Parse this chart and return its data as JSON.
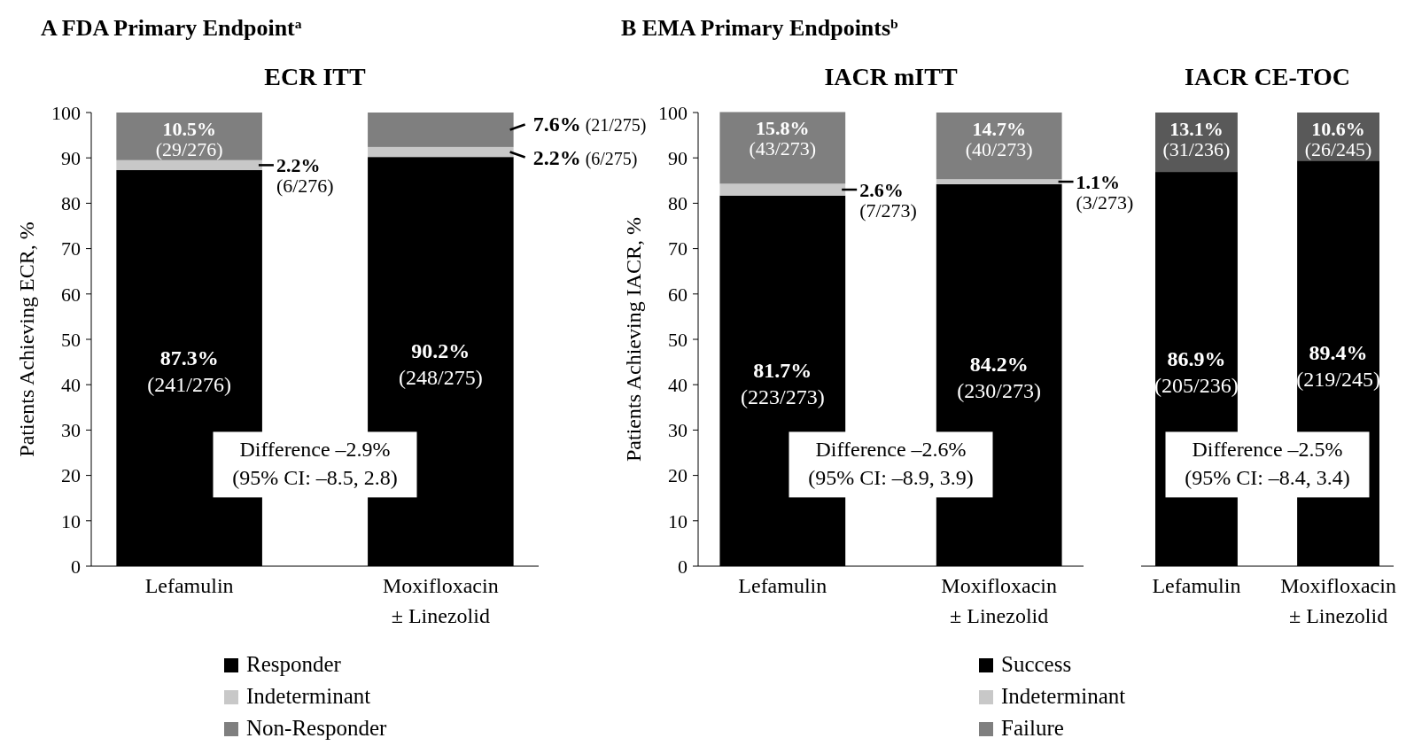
{
  "chart_data": [
    {
      "type": "bar",
      "stacked": true,
      "subtitle": "A  FDA Primary Endpoint$^{a}$",
      "title": "ECR ITT",
      "ylabel": "Patients Achieving ECR, %",
      "categories": [
        "Lefamulin",
        "Moxifloxacin ± Linezolid"
      ],
      "series": [
        {
          "name": "Responder",
          "color": "#000000",
          "values": [
            87.3,
            90.2
          ],
          "value_labels": [
            "87.3% (241/276)",
            "90.2% (248/275)"
          ]
        },
        {
          "name": "Indeterminant",
          "color": "#c8c8c8",
          "values": [
            2.2,
            2.2
          ],
          "value_labels": [
            "2.2% (6/276)",
            "2.2% (6/275)"
          ]
        },
        {
          "name": "Non-Responder",
          "color": "#7f7f7f",
          "values": [
            10.5,
            7.6
          ],
          "value_labels": [
            "10.5% (29/276)",
            "7.6% (21/275)"
          ]
        }
      ],
      "ylim": [
        0,
        100
      ],
      "yticks": [
        0,
        10,
        20,
        30,
        40,
        50,
        60,
        70,
        80,
        90,
        100
      ],
      "legend": "bottom",
      "annotations": [
        "Difference –2.9% (95% CI: –8.5, 2.8)"
      ]
    },
    {
      "type": "bar",
      "stacked": true,
      "subtitle": "B  EMA Primary Endpoints$^{b}$",
      "title": "IACR mITT",
      "ylabel": "Patients Achieving IACR, %",
      "categories": [
        "Lefamulin",
        "Moxifloxacin ± Linezolid"
      ],
      "series": [
        {
          "name": "Success",
          "color": "#000000",
          "values": [
            81.7,
            84.2
          ],
          "value_labels": [
            "81.7% (223/273)",
            "84.2% (230/273)"
          ]
        },
        {
          "name": "Indeterminant",
          "color": "#c8c8c8",
          "values": [
            2.6,
            1.1
          ],
          "value_labels": [
            "2.6% (7/273)",
            "1.1% (3/273)"
          ]
        },
        {
          "name": "Failure",
          "color": "#7f7f7f",
          "values": [
            15.8,
            14.7
          ],
          "value_labels": [
            "15.8% (43/273)",
            "14.7% (40/273)"
          ]
        }
      ],
      "ylim": [
        0,
        100
      ],
      "yticks": [
        0,
        10,
        20,
        30,
        40,
        50,
        60,
        70,
        80,
        90,
        100
      ],
      "legend": "bottom",
      "annotations": [
        "Difference –2.6% (95% CI: –8.9, 3.9)"
      ]
    },
    {
      "type": "bar",
      "stacked": true,
      "title": "IACR CE-TOC",
      "categories": [
        "Lefamulin",
        "Moxifloxacin ± Linezolid"
      ],
      "series": [
        {
          "color": "#000000",
          "values": [
            86.9,
            89.4
          ],
          "value_labels": [
            "86.9% (205/236)",
            "89.4% (219/245)"
          ]
        },
        {
          "color": "#595959",
          "values": [
            13.1,
            10.6
          ],
          "value_labels": [
            "13.1% (31/236)",
            "10.6% (26/245)"
          ]
        }
      ],
      "ylim": [
        0,
        100
      ],
      "tick_labels": "x",
      "annotations": [
        "Difference –2.5% (95% CI: –8.4, 3.4)"
      ]
    }
  ]
}
